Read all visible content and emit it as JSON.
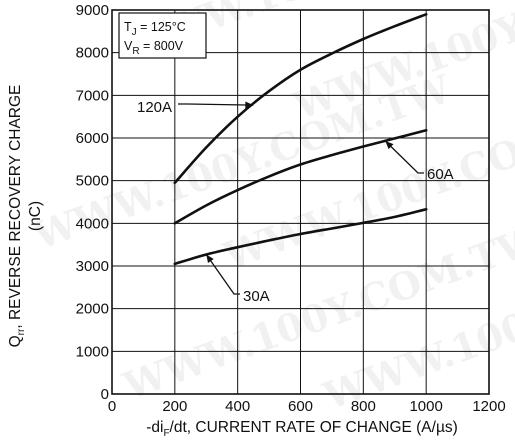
{
  "watermark": "WWW.100Y.COM.TW",
  "chart_data": {
    "type": "line",
    "x_axis": {
      "label_prefix": "-di",
      "label_sub": "F",
      "label_suffix": "/dt, CURRENT RATE OF CHANGE (A/µs)",
      "range": [
        0,
        1200
      ],
      "ticks": [
        0,
        200,
        400,
        600,
        800,
        1000,
        1200
      ]
    },
    "y_axis": {
      "label_prefix": "Q",
      "label_sub": "rr",
      "label_suffix": ", REVERSE RECOVERY CHARGE",
      "unit": "(nC)",
      "range": [
        0,
        9000
      ],
      "ticks": [
        0,
        1000,
        2000,
        3000,
        4000,
        5000,
        6000,
        7000,
        8000,
        9000
      ]
    },
    "grid": true,
    "legend": {
      "placement": "top-left",
      "line1_prefix": "T",
      "line1_sub": "J",
      "line1_value": " = 125°C",
      "line2_prefix": "V",
      "line2_sub": "R",
      "line2_value": " = 800V"
    },
    "series": [
      {
        "name": "120A",
        "x": [
          200,
          300,
          400,
          500,
          600,
          700,
          800,
          900,
          1000
        ],
        "y": [
          4950,
          5780,
          6500,
          7100,
          7600,
          7980,
          8320,
          8620,
          8900
        ]
      },
      {
        "name": "60A",
        "x": [
          200,
          300,
          400,
          500,
          600,
          700,
          800,
          900,
          1000
        ],
        "y": [
          4000,
          4420,
          4780,
          5100,
          5380,
          5600,
          5800,
          5990,
          6180
        ]
      },
      {
        "name": "30A",
        "x": [
          200,
          300,
          400,
          500,
          600,
          700,
          800,
          900,
          1000
        ],
        "y": [
          3050,
          3270,
          3440,
          3600,
          3750,
          3880,
          4010,
          4150,
          4330
        ]
      }
    ]
  }
}
